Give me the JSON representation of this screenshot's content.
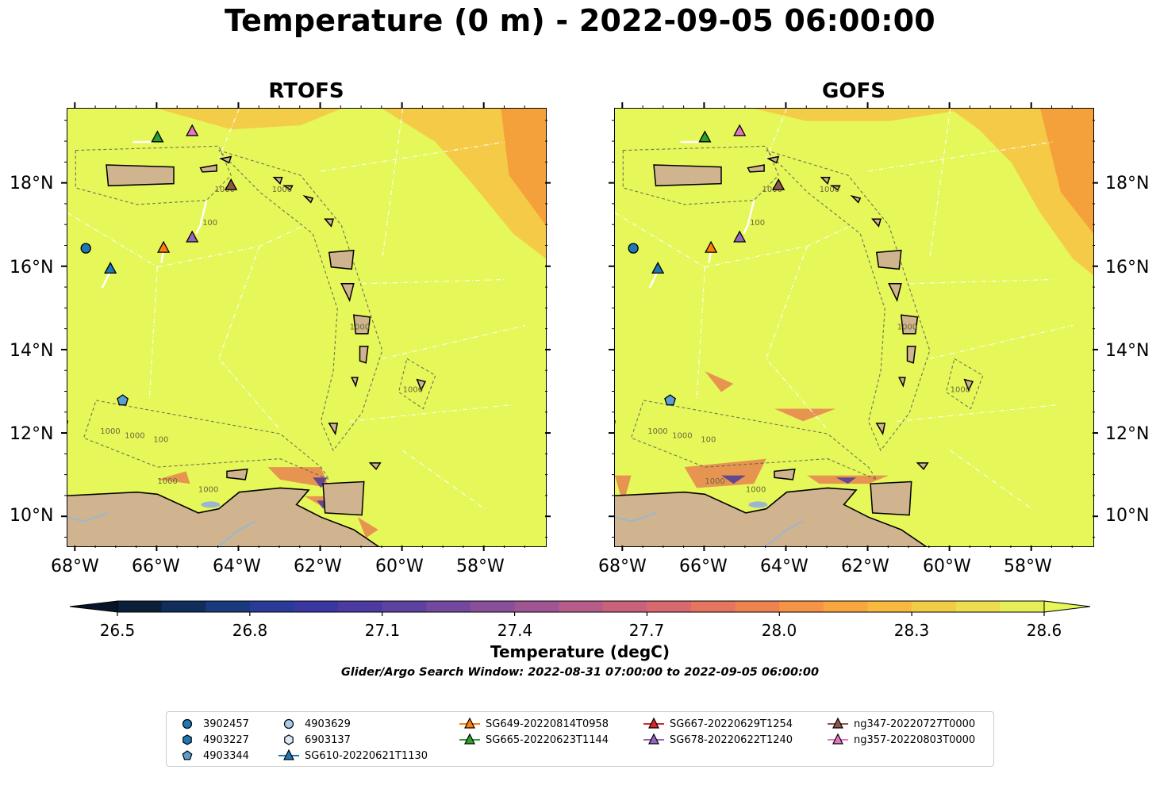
{
  "title": "Temperature (0 m) - 2022-09-05 06:00:00",
  "panels": [
    {
      "id": "rtofs",
      "title": "RTOFS"
    },
    {
      "id": "gofs",
      "title": "GOFS"
    }
  ],
  "map": {
    "lon_range": [
      -68.2,
      -56.5
    ],
    "lat_range": [
      9.3,
      19.8
    ],
    "lon_ticks": [
      "68°W",
      "66°W",
      "64°W",
      "62°W",
      "60°W",
      "58°W"
    ],
    "lat_ticks": [
      "18°N",
      "16°N",
      "14°N",
      "12°N",
      "10°N"
    ],
    "land_color": "#cfb48f",
    "sea_color": "#e6f75a",
    "contour_labels": [
      "1000",
      "100"
    ]
  },
  "colorbar": {
    "label": "Temperature (degC)",
    "min": 26.5,
    "max": 28.6,
    "ticks": [
      "26.5",
      "26.8",
      "27.1",
      "27.4",
      "27.7",
      "28.0",
      "28.3",
      "28.6"
    ]
  },
  "search_window": "Glider/Argo Search Window: 2022-08-31 07:00:00 to 2022-09-05 06:00:00",
  "legend": [
    {
      "label": "3902457",
      "marker": "circle",
      "color": "#1f77b4",
      "line": false
    },
    {
      "label": "4903227",
      "marker": "hexagon",
      "color": "#1f77b4",
      "line": false
    },
    {
      "label": "4903344",
      "marker": "pentagon",
      "color": "#5a9fd4",
      "line": false
    },
    {
      "label": "4903629",
      "marker": "circle",
      "color": "#a6cbec",
      "line": false
    },
    {
      "label": "6903137",
      "marker": "hexagon",
      "color": "#dbe8f5",
      "line": false
    },
    {
      "label": "SG610-20220621T1130",
      "marker": "triangle",
      "color": "#1f77b4",
      "line": true
    },
    {
      "label": "SG649-20220814T0958",
      "marker": "triangle",
      "color": "#ff7f0e",
      "line": true
    },
    {
      "label": "SG665-20220623T1144",
      "marker": "triangle",
      "color": "#2ca02c",
      "line": true
    },
    {
      "label": "SG667-20220629T1254",
      "marker": "triangle",
      "color": "#d62728",
      "line": true
    },
    {
      "label": "SG678-20220622T1240",
      "marker": "triangle",
      "color": "#9467bd",
      "line": true
    },
    {
      "label": "ng347-20220727T0000",
      "marker": "triangle",
      "color": "#8c564b",
      "line": true
    },
    {
      "label": "ng357-20220803T0000",
      "marker": "triangle",
      "color": "#e377c2",
      "line": true
    }
  ],
  "observations": [
    {
      "id": "3902457",
      "lon": -67.75,
      "lat": 16.45
    },
    {
      "id": "4903344",
      "lon": -66.85,
      "lat": 12.8
    },
    {
      "id": "SG610-20220621T1130",
      "lon": -67.15,
      "lat": 15.95
    },
    {
      "id": "SG649-20220814T0958",
      "lon": -65.85,
      "lat": 16.45
    },
    {
      "id": "SG665-20220623T1144",
      "lon": -66.0,
      "lat": 19.1
    },
    {
      "id": "SG678-20220622T1240",
      "lon": -65.15,
      "lat": 16.7
    },
    {
      "id": "ng347-20220727T0000",
      "lon": -64.2,
      "lat": 17.95
    },
    {
      "id": "ng357-20220803T0000",
      "lon": -65.15,
      "lat": 19.25
    }
  ]
}
